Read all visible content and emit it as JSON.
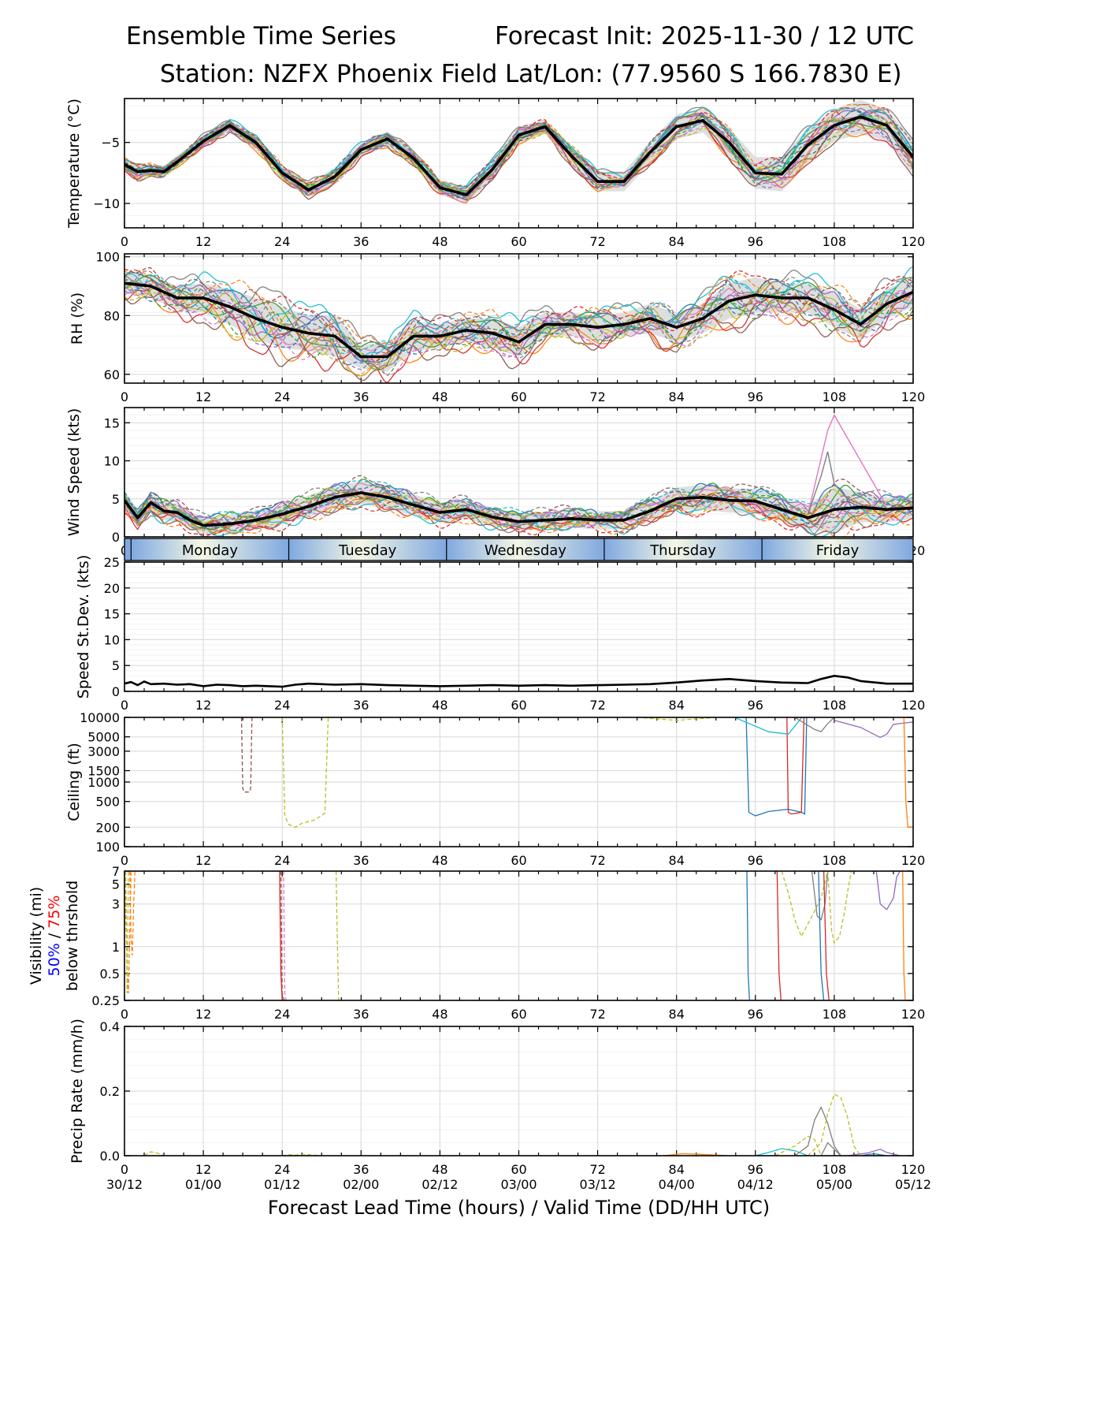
{
  "header": {
    "left_title": "Ensemble Time Series",
    "right_title": "Forecast Init: 2025-11-30 / 12 UTC",
    "station": "Station: NZFX Phoenix Field",
    "latlon": "Lat/Lon: (77.9560 S 166.7830 E)"
  },
  "x_axis": {
    "lead_ticks": [
      "0",
      "12",
      "24",
      "36",
      "48",
      "60",
      "72",
      "84",
      "96",
      "108",
      "120"
    ],
    "valid_ticks": [
      "30/12",
      "01/00",
      "01/12",
      "02/00",
      "02/12",
      "03/00",
      "03/12",
      "04/00",
      "04/12",
      "05/00",
      "05/12"
    ],
    "xlabel": "Forecast Lead Time (hours) / Valid Time (DD/HH UTC)",
    "xlim": [
      0,
      120
    ]
  },
  "day_band": [
    "Monday",
    "Tuesday",
    "Wednesday",
    "Thursday",
    "Friday"
  ],
  "colors": {
    "members": [
      "#1f77b4",
      "#ff7f0e",
      "#2ca02c",
      "#d62728",
      "#9467bd",
      "#8c564b",
      "#e377c2",
      "#7f7f7f",
      "#bcbd22",
      "#17becf"
    ],
    "mean": "#000000",
    "spread": "#d9d9d9",
    "band_edge": "#7fa8e0",
    "band_mid": "#f4f7e6",
    "vis_50": "#0000ff",
    "vis_75": "#ff0000"
  },
  "chart_data": [
    {
      "id": "temperature",
      "type": "line",
      "ylabel": "Temperature (°C)",
      "ylim": [
        -12,
        -1.4
      ],
      "yticks": [
        -10,
        -5
      ],
      "yticklabels": [
        "−10",
        "−5"
      ],
      "mean_x": [
        0,
        2,
        4,
        6,
        8,
        12,
        16,
        20,
        24,
        28,
        32,
        36,
        40,
        44,
        48,
        52,
        56,
        60,
        64,
        68,
        72,
        76,
        80,
        84,
        88,
        92,
        96,
        100,
        104,
        108,
        112,
        116,
        120
      ],
      "mean_y": [
        -6.8,
        -7.4,
        -7.3,
        -7.4,
        -6.6,
        -4.9,
        -3.6,
        -5.0,
        -7.5,
        -8.9,
        -7.8,
        -5.6,
        -4.7,
        -6.3,
        -8.7,
        -9.3,
        -7.2,
        -4.4,
        -3.7,
        -6.1,
        -8.2,
        -8.2,
        -5.8,
        -3.7,
        -3.2,
        -5.0,
        -7.5,
        -7.6,
        -5.2,
        -3.6,
        -2.9,
        -3.6,
        -6.2
      ],
      "spread": [
        0.5,
        0.6,
        0.5,
        0.5,
        0.5,
        0.5,
        0.5,
        0.6,
        0.6,
        0.6,
        0.7,
        0.6,
        0.6,
        0.6,
        0.6,
        0.7,
        0.8,
        0.7,
        0.6,
        0.8,
        0.8,
        0.8,
        0.9,
        1.0,
        1.0,
        1.2,
        1.3,
        1.4,
        1.4,
        1.3,
        1.4,
        1.3,
        1.4
      ],
      "member_count": 20,
      "member_jitter": 0.55
    },
    {
      "id": "rh",
      "type": "line",
      "ylabel": "RH (%)",
      "ylim": [
        57,
        101
      ],
      "yticks": [
        60,
        80,
        100
      ],
      "yticklabels": [
        "60",
        "80",
        "100"
      ],
      "mean_x": [
        0,
        4,
        8,
        12,
        16,
        20,
        24,
        28,
        32,
        36,
        40,
        44,
        48,
        52,
        56,
        60,
        64,
        68,
        72,
        76,
        80,
        84,
        88,
        92,
        96,
        100,
        104,
        108,
        112,
        116,
        120
      ],
      "mean_y": [
        91,
        90,
        86,
        86,
        83,
        79,
        76,
        74,
        73,
        66,
        66,
        73,
        73,
        75,
        74,
        71,
        77,
        77,
        76,
        77,
        79,
        76,
        79,
        85,
        87,
        86,
        86,
        82,
        77,
        84,
        88
      ],
      "spread": [
        3,
        4,
        4,
        5,
        6,
        7,
        7,
        6,
        7,
        4,
        5,
        5,
        4,
        4,
        5,
        5,
        4,
        4,
        4,
        4,
        5,
        5,
        5,
        6,
        6,
        5,
        5,
        6,
        5,
        5,
        5
      ],
      "member_count": 20,
      "member_jitter": 5
    },
    {
      "id": "wind",
      "type": "line",
      "ylabel": "Wind Speed (kts)",
      "ylim": [
        0,
        17
      ],
      "yticks": [
        0,
        5,
        10,
        15
      ],
      "yticklabels": [
        "0",
        "5",
        "10",
        "15"
      ],
      "mean_x": [
        0,
        2,
        4,
        6,
        8,
        10,
        12,
        16,
        20,
        24,
        28,
        32,
        36,
        40,
        44,
        48,
        52,
        56,
        60,
        64,
        68,
        72,
        76,
        80,
        84,
        88,
        92,
        96,
        100,
        104,
        108,
        112,
        116,
        120
      ],
      "mean_y": [
        4.8,
        2.5,
        4.5,
        3.4,
        3.2,
        2.2,
        1.5,
        1.7,
        2.2,
        3.0,
        4.0,
        5.2,
        5.8,
        5.2,
        4.2,
        3.2,
        3.6,
        2.6,
        2.0,
        2.2,
        2.4,
        2.2,
        2.2,
        3.4,
        5.0,
        5.2,
        4.8,
        4.7,
        3.6,
        2.5,
        3.6,
        3.9,
        3.6,
        3.8
      ],
      "spread": [
        1.2,
        1.2,
        1.2,
        1.2,
        1.2,
        1.1,
        1.1,
        1.2,
        1.2,
        1.3,
        1.4,
        1.5,
        1.5,
        1.5,
        1.4,
        1.3,
        1.2,
        1.2,
        1.1,
        1.1,
        1.2,
        1.2,
        1.2,
        1.3,
        1.5,
        1.6,
        1.6,
        1.6,
        1.5,
        1.6,
        3.0,
        2.0,
        1.6,
        1.5
      ],
      "member_count": 20,
      "member_jitter": 1.6,
      "spike_members": [
        {
          "x": [
            104,
            107,
            108,
            112,
            116
          ],
          "y": [
            3,
            14,
            16,
            10,
            4
          ]
        },
        {
          "x": [
            104,
            106,
            107,
            108,
            110,
            113
          ],
          "y": [
            3,
            8,
            11.2,
            7,
            5,
            4
          ]
        }
      ]
    },
    {
      "id": "spd_sd",
      "type": "line",
      "ylabel": "Speed St.Dev. (kts)",
      "ylim": [
        0,
        25
      ],
      "yticks": [
        0,
        5,
        10,
        15,
        20,
        25
      ],
      "yticklabels": [
        "0",
        "5",
        "10",
        "15",
        "20",
        "25"
      ],
      "x": [
        0,
        1,
        2,
        3,
        4,
        6,
        8,
        10,
        12,
        14,
        16,
        18,
        20,
        24,
        26,
        28,
        32,
        36,
        40,
        44,
        48,
        52,
        56,
        60,
        64,
        68,
        72,
        76,
        80,
        84,
        88,
        92,
        96,
        100,
        104,
        106,
        108,
        110,
        112,
        116,
        120
      ],
      "y": [
        1.5,
        1.8,
        1.2,
        1.9,
        1.4,
        1.5,
        1.3,
        1.4,
        1.0,
        1.3,
        1.2,
        1.0,
        1.1,
        0.9,
        1.3,
        1.5,
        1.3,
        1.4,
        1.2,
        1.1,
        1.0,
        1.1,
        1.2,
        1.1,
        1.2,
        1.1,
        1.2,
        1.3,
        1.4,
        1.7,
        2.1,
        2.4,
        2.0,
        1.7,
        1.6,
        2.4,
        3.0,
        2.7,
        2.0,
        1.5,
        1.5
      ]
    },
    {
      "id": "ceiling",
      "type": "line",
      "ylabel": "Ceiling (ft)",
      "scale": "log",
      "ylim": [
        100,
        10000
      ],
      "yticks": [
        100,
        200,
        500,
        1000,
        1500,
        3000,
        5000,
        10000
      ],
      "yticklabels": [
        "100",
        "200",
        "500",
        "1000",
        "1500",
        "3000",
        "5000",
        "10000"
      ],
      "members": [
        {
          "c": 5,
          "dash": true,
          "x": [
            17.8,
            18.0,
            18.2,
            19.0,
            19.2,
            19.4
          ],
          "y": [
            10000,
            800,
            700,
            700,
            800,
            10000
          ]
        },
        {
          "c": 8,
          "dash": true,
          "x": [
            24.0,
            24.4,
            25.0,
            26.0,
            27.0,
            29.0,
            30.5,
            31.0
          ],
          "y": [
            10000,
            300,
            220,
            200,
            230,
            260,
            330,
            10000
          ]
        },
        {
          "c": 8,
          "dash": true,
          "x": [
            78,
            84,
            90
          ],
          "y": [
            10000,
            9000,
            10000
          ]
        },
        {
          "c": 0,
          "dash": false,
          "x": [
            94.6,
            95.0,
            96.0,
            98.0,
            101.0,
            103.0,
            103.5,
            103.8
          ],
          "y": [
            10000,
            340,
            300,
            350,
            380,
            340,
            320,
            10000
          ]
        },
        {
          "c": 3,
          "dash": false,
          "x": [
            100.8,
            101.0,
            101.5,
            103.0,
            103.4
          ],
          "y": [
            10000,
            340,
            320,
            340,
            10000
          ]
        },
        {
          "c": 9,
          "dash": false,
          "x": [
            93,
            98,
            101,
            103
          ],
          "y": [
            9800,
            6000,
            5500,
            9800
          ]
        },
        {
          "c": 7,
          "dash": false,
          "x": [
            102,
            105,
            106,
            107,
            108
          ],
          "y": [
            10000,
            6500,
            6000,
            8000,
            10000
          ]
        },
        {
          "c": 4,
          "dash": false,
          "x": [
            108,
            112,
            114,
            115,
            116,
            117,
            120
          ],
          "y": [
            9000,
            7000,
            5500,
            4900,
            5500,
            7800,
            8500
          ]
        },
        {
          "c": 1,
          "dash": false,
          "x": [
            118.6,
            118.9,
            119.2,
            120
          ],
          "y": [
            10000,
            500,
            200,
            200
          ]
        }
      ]
    },
    {
      "id": "visibility",
      "type": "line",
      "ylabel": "Visibility (mi)",
      "scale": "log",
      "ylabel_50": "50%",
      "ylabel_sep": " / ",
      "ylabel_75": "75%",
      "ylabel_2": "below thrshold",
      "ylim": [
        0.25,
        7
      ],
      "yticks": [
        0.25,
        0.5,
        1,
        3,
        5,
        7
      ],
      "yticklabels": [
        "0.25",
        "0.5",
        "1",
        "3",
        "5",
        "7"
      ],
      "members": [
        {
          "c": 1,
          "dash": true,
          "x": [
            0.0,
            0.2,
            0.4,
            0.6,
            0.8,
            1.0
          ],
          "y": [
            7,
            2,
            0.6,
            0.3,
            1.5,
            7
          ]
        },
        {
          "c": 1,
          "dash": true,
          "x": [
            0.8,
            1.0,
            1.2,
            1.4,
            1.6
          ],
          "y": [
            7,
            1.2,
            0.8,
            3,
            7
          ]
        },
        {
          "c": 8,
          "dash": true,
          "x": [
            0.2,
            0.4,
            0.6
          ],
          "y": [
            7,
            0.3,
            7
          ]
        },
        {
          "c": 3,
          "dash": false,
          "x": [
            23.6,
            23.8,
            24.0,
            24.2
          ],
          "y": [
            7,
            0.5,
            0.25,
            0.25
          ]
        },
        {
          "c": 6,
          "dash": true,
          "x": [
            24.2,
            24.4,
            24.6
          ],
          "y": [
            7,
            0.3,
            0.25
          ]
        },
        {
          "c": 5,
          "dash": true,
          "x": [
            23.8,
            24.0,
            24.3
          ],
          "y": [
            7,
            0.3,
            0.25
          ]
        },
        {
          "c": 8,
          "dash": true,
          "x": [
            32.2,
            32.4,
            32.6
          ],
          "y": [
            7,
            1,
            0.25
          ]
        },
        {
          "c": 0,
          "dash": false,
          "x": [
            94.7,
            94.9,
            95.1
          ],
          "y": [
            7,
            0.5,
            0.25
          ]
        },
        {
          "c": 3,
          "dash": false,
          "x": [
            99.3,
            99.6,
            99.9
          ],
          "y": [
            7,
            0.5,
            0.25
          ]
        },
        {
          "c": 8,
          "dash": true,
          "x": [
            100,
            101,
            102,
            103,
            104,
            105,
            106,
            107
          ],
          "y": [
            7,
            4,
            2,
            1.3,
            1.8,
            2.5,
            3.5,
            7
          ]
        },
        {
          "c": 7,
          "dash": false,
          "x": [
            104.6,
            105.4,
            106.0,
            106.6,
            107.0
          ],
          "y": [
            7,
            2.2,
            2.0,
            3.0,
            7
          ]
        },
        {
          "c": 0,
          "dash": false,
          "x": [
            105.6,
            106.0,
            106.4
          ],
          "y": [
            7,
            0.5,
            0.25
          ]
        },
        {
          "c": 3,
          "dash": false,
          "x": [
            106.4,
            106.8,
            107.2
          ],
          "y": [
            7,
            0.5,
            0.25
          ]
        },
        {
          "c": 8,
          "dash": true,
          "x": [
            107,
            107.6,
            108.0,
            108.8,
            109.6,
            110.0,
            110.6
          ],
          "y": [
            7,
            1.5,
            1.1,
            1.3,
            2.5,
            4,
            7
          ]
        },
        {
          "c": 4,
          "dash": false,
          "x": [
            114.4,
            115.0,
            116.0,
            117.0,
            117.5,
            118.0
          ],
          "y": [
            7,
            3.0,
            2.6,
            3.5,
            6.0,
            7
          ]
        },
        {
          "c": 1,
          "dash": false,
          "x": [
            118.4,
            118.6,
            118.8
          ],
          "y": [
            7,
            0.5,
            0.25
          ]
        }
      ]
    },
    {
      "id": "precip",
      "type": "line",
      "ylabel": "Precip Rate (mm/h)",
      "ylim": [
        0,
        0.4
      ],
      "yticks": [
        0.0,
        0.2,
        0.4
      ],
      "yticklabels": [
        "0.0",
        "0.2",
        "0.4"
      ],
      "members": [
        {
          "c": 8,
          "dash": true,
          "x": [
            3,
            4,
            5,
            6
          ],
          "y": [
            0,
            0.012,
            0.008,
            0
          ]
        },
        {
          "c": 8,
          "dash": true,
          "x": [
            24,
            25,
            26,
            28,
            30
          ],
          "y": [
            0,
            0.003,
            0.002,
            0.003,
            0
          ]
        },
        {
          "c": 1,
          "dash": false,
          "x": [
            82,
            85,
            88,
            92
          ],
          "y": [
            0,
            0.006,
            0.004,
            0
          ]
        },
        {
          "c": 9,
          "dash": false,
          "x": [
            96,
            98,
            100,
            102,
            104
          ],
          "y": [
            0,
            0.01,
            0.022,
            0.015,
            0
          ]
        },
        {
          "c": 8,
          "dash": true,
          "x": [
            99,
            102,
            104,
            105,
            106
          ],
          "y": [
            0,
            0.03,
            0.06,
            0.05,
            0
          ]
        },
        {
          "c": 7,
          "dash": false,
          "x": [
            102,
            104,
            105,
            106,
            107,
            108,
            109
          ],
          "y": [
            0,
            0.03,
            0.11,
            0.15,
            0.1,
            0.03,
            0
          ]
        },
        {
          "c": 8,
          "dash": true,
          "x": [
            104,
            106,
            107,
            108,
            109,
            110,
            111,
            112
          ],
          "y": [
            0,
            0.04,
            0.13,
            0.19,
            0.18,
            0.12,
            0.03,
            0
          ]
        },
        {
          "c": 7,
          "dash": false,
          "x": [
            106,
            107,
            108,
            109
          ],
          "y": [
            0,
            0.04,
            0.02,
            0
          ]
        },
        {
          "c": 4,
          "dash": false,
          "x": [
            110,
            113,
            115,
            116,
            118
          ],
          "y": [
            0,
            0.008,
            0.02,
            0.01,
            0
          ]
        },
        {
          "c": 0,
          "dash": false,
          "x": [
            112,
            114,
            116
          ],
          "y": [
            0,
            0.006,
            0
          ]
        }
      ]
    }
  ]
}
